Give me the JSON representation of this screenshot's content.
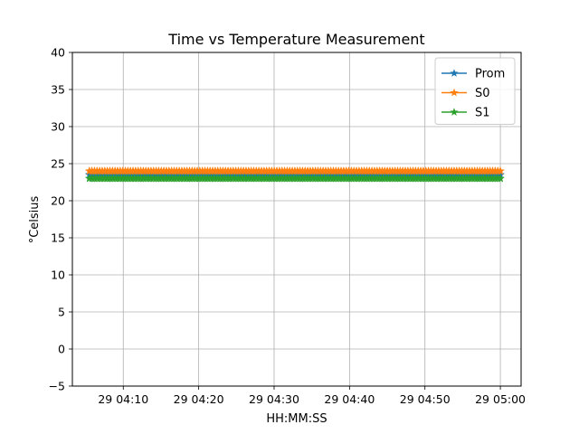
{
  "chart_data": {
    "type": "line",
    "title": "Time vs Temperature Measurement",
    "xlabel": "HH:MM:SS",
    "ylabel": "°Celsius",
    "x_start": "29 04:05:30",
    "x_end": "29 05:00:00",
    "xlim": [
      "29 04:03:15",
      "29 05:02:45"
    ],
    "ylim": [
      -5,
      40
    ],
    "xticks": [
      "29 04:10",
      "29 04:20",
      "29 04:30",
      "29 04:40",
      "29 04:50",
      "29 05:00"
    ],
    "yticks": [
      -5,
      0,
      5,
      10,
      15,
      20,
      25,
      30,
      35,
      40
    ],
    "grid": true,
    "legend_position": "top-right",
    "marker": "star",
    "series": [
      {
        "name": "Prom",
        "color": "#1f77b4",
        "value": 23.5
      },
      {
        "name": "S0",
        "color": "#ff7f0e",
        "value": 24.0
      },
      {
        "name": "S1",
        "color": "#2ca02c",
        "value": 23.0
      }
    ]
  }
}
